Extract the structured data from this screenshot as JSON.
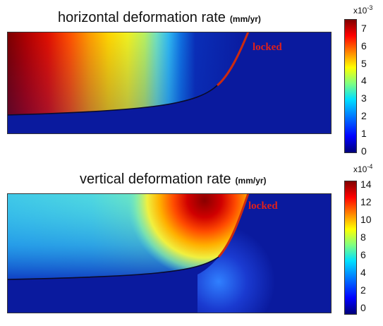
{
  "panels": [
    {
      "title": "horizontal deformation rate",
      "unit": "(mm/yr)",
      "fault_label": "locked",
      "colorbar": {
        "multiplier_base": "x10",
        "multiplier_exp": "-3",
        "ticks": [
          "0",
          "1",
          "2",
          "3",
          "4",
          "5",
          "6",
          "7"
        ]
      }
    },
    {
      "title": "vertical deformation rate",
      "unit": "(mm/yr)",
      "fault_label": "locked",
      "colorbar": {
        "multiplier_base": "x10",
        "multiplier_exp": "-4",
        "ticks": [
          "0",
          "2",
          "4",
          "6",
          "8",
          "10",
          "12",
          "14"
        ]
      }
    }
  ],
  "colors": {
    "fault": "#cc2a10",
    "background_low": "#0a1a9e",
    "high": "#8b0000"
  }
}
